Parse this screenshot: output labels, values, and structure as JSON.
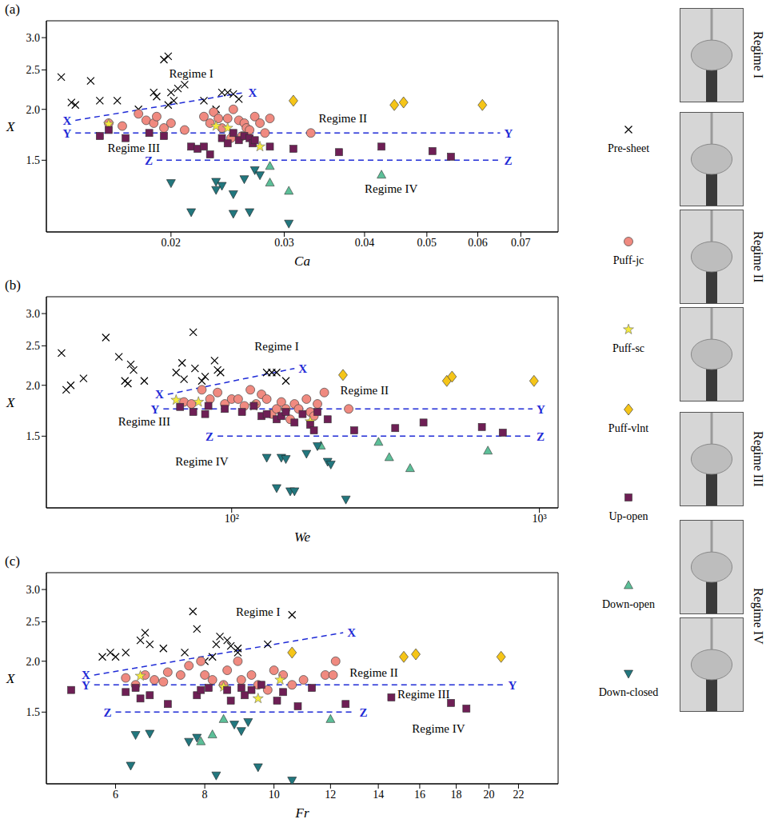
{
  "chart_data": [
    {
      "type": "scatter",
      "panel": "(a)",
      "xlabel": "Ca",
      "ylabel": "X",
      "log": true,
      "legend": "right",
      "xlim": [
        0.0128,
        0.08
      ],
      "xticks": [
        0.02,
        0.03,
        0.04,
        0.05,
        0.06,
        0.07
      ],
      "ylim": [
        1.0,
        3.3
      ],
      "yticks": [
        1.5,
        {
          "value": 2,
          "label": "2.0"
        },
        2.5,
        {
          "value": 3,
          "label": "3.0"
        }
      ],
      "series": [
        {
          "name": "Pre-sheet",
          "color": "#000000",
          "marker": "x",
          "x": [
            0.0135,
            0.014,
            0.0142,
            0.015,
            0.0155,
            0.0165,
            0.0178,
            0.0188,
            0.019,
            0.0195,
            0.0198,
            0.02,
            0.0205,
            0.0202,
            0.0198,
            0.021,
            0.0225,
            0.024,
            0.0245,
            0.025,
            0.0255,
            0.0235
          ],
          "y": [
            2.4,
            2.08,
            2.05,
            2.35,
            2.1,
            2.1,
            2.0,
            2.2,
            2.15,
            2.65,
            2.7,
            2.2,
            2.25,
            2.1,
            2.05,
            2.3,
            2.1,
            2.2,
            2.2,
            2.18,
            2.12,
            2.0
          ]
        },
        {
          "name": "Puff-jc",
          "color": "#f08a80",
          "marker": "circle",
          "x": [
            0.016,
            0.0168,
            0.0178,
            0.0183,
            0.0188,
            0.019,
            0.0195,
            0.02,
            0.021,
            0.0225,
            0.023,
            0.0233,
            0.0237,
            0.024,
            0.0245,
            0.025,
            0.0255,
            0.026,
            0.0262,
            0.0265,
            0.027,
            0.0275,
            0.028,
            0.0285,
            0.033,
            0.0248,
            0.0258
          ],
          "y": [
            1.85,
            1.82,
            1.95,
            1.88,
            1.85,
            1.92,
            1.8,
            1.85,
            1.78,
            1.92,
            1.85,
            1.97,
            1.9,
            1.8,
            1.9,
            2.0,
            1.88,
            1.85,
            1.8,
            1.78,
            1.92,
            1.85,
            1.75,
            1.9,
            1.75,
            1.7,
            1.72
          ]
        },
        {
          "name": "Puff-sc",
          "color": "#f4ea3c",
          "marker": "star",
          "x": [
            0.016,
            0.0235,
            0.0245,
            0.0275
          ],
          "y": [
            1.84,
            1.82,
            1.8,
            1.62
          ]
        },
        {
          "name": "Puff-vlnt",
          "color": "#f5c518",
          "marker": "diamond",
          "x": [
            0.031,
            0.0445,
            0.046,
            0.061
          ],
          "y": [
            2.1,
            2.05,
            2.08,
            2.05
          ]
        },
        {
          "name": "Up-open",
          "color": "#6e1f55",
          "marker": "square",
          "x": [
            0.0155,
            0.016,
            0.017,
            0.0185,
            0.0195,
            0.0215,
            0.022,
            0.0225,
            0.023,
            0.024,
            0.0245,
            0.025,
            0.0255,
            0.026,
            0.0265,
            0.0268,
            0.027,
            0.0285,
            0.031,
            0.0365,
            0.0425,
            0.051,
            0.0545
          ],
          "y": [
            1.72,
            1.78,
            1.7,
            1.75,
            1.72,
            1.62,
            1.6,
            1.62,
            1.55,
            1.7,
            1.65,
            1.75,
            1.68,
            1.72,
            1.7,
            1.65,
            1.68,
            1.62,
            1.6,
            1.57,
            1.62,
            1.58,
            1.53
          ]
        },
        {
          "name": "Down-open",
          "color": "#5cbf98",
          "marker": "triangle",
          "x": [
            0.0285,
            0.0285,
            0.0305,
            0.0425
          ],
          "y": [
            1.45,
            1.32,
            1.26,
            1.38
          ]
        },
        {
          "name": "Down-closed",
          "color": "#22777e",
          "marker": "triangle-down",
          "x": [
            0.02,
            0.0215,
            0.0235,
            0.024,
            0.025,
            0.025,
            0.026,
            0.0265,
            0.027,
            0.0275,
            0.0305,
            0.0235
          ],
          "y": [
            1.32,
            1.12,
            1.33,
            1.3,
            1.24,
            1.11,
            1.35,
            1.12,
            1.42,
            1.38,
            1.05,
            1.27
          ]
        }
      ],
      "boundaries": [
        {
          "label": "X",
          "color": "#1f2bd6",
          "line_style": "dashed",
          "x": [
            0.0142,
            0.026
          ],
          "y": [
            1.88,
            2.2
          ]
        },
        {
          "label": "Y",
          "color": "#1f2bd6",
          "line_style": "dashed",
          "x": [
            0.0142,
            0.065
          ],
          "y": [
            1.75,
            1.75
          ]
        },
        {
          "label": "Z",
          "color": "#1f2bd6",
          "line_style": "dashed",
          "x": [
            0.019,
            0.065
          ],
          "y": [
            1.5,
            1.5
          ]
        }
      ],
      "annotations": [
        {
          "text": "Regime I",
          "x": 0.0215,
          "y": 2.45
        },
        {
          "text": "Regime II",
          "x": 0.037,
          "y": 1.9
        },
        {
          "text": "Regime III",
          "x": 0.0175,
          "y": 1.61
        },
        {
          "text": "Regime IV",
          "x": 0.044,
          "y": 1.28
        }
      ]
    },
    {
      "type": "scatter",
      "panel": "(b)",
      "xlabel": "We",
      "ylabel": "X",
      "log": true,
      "legend": "right",
      "xlim": [
        25,
        1150
      ],
      "xticks": [
        {
          "value": 100,
          "label": "10²"
        },
        {
          "value": 1000,
          "label": "10³"
        }
      ],
      "ylim": [
        1.0,
        3.3
      ],
      "yticks": [
        1.5,
        {
          "value": 2,
          "label": "2.0"
        },
        2.5,
        {
          "value": 3,
          "label": "3.0"
        }
      ],
      "series": [
        {
          "name": "Pre-sheet",
          "color": "#000000",
          "marker": "x",
          "x": [
            28,
            29,
            30,
            33,
            39,
            43,
            45,
            46,
            47,
            48,
            52,
            66,
            69,
            70,
            75,
            76,
            80,
            82,
            88,
            90,
            92,
            130,
            135,
            140,
            150
          ],
          "y": [
            2.4,
            1.95,
            2.0,
            2.08,
            2.62,
            2.35,
            2.05,
            2.02,
            2.25,
            2.18,
            2.05,
            2.15,
            2.27,
            2.07,
            2.7,
            2.2,
            2.05,
            2.1,
            2.3,
            2.18,
            2.15,
            2.15,
            2.15,
            2.15,
            2.05
          ]
        },
        {
          "name": "Puff-jc",
          "color": "#f08a80",
          "marker": "circle",
          "x": [
            70,
            74,
            80,
            85,
            90,
            95,
            100,
            105,
            110,
            115,
            120,
            125,
            130,
            135,
            140,
            145,
            150,
            155,
            160,
            165,
            175,
            180,
            190,
            240,
            200,
            185
          ],
          "y": [
            1.82,
            1.8,
            1.95,
            1.85,
            1.92,
            1.8,
            1.85,
            1.85,
            1.78,
            1.95,
            1.8,
            1.9,
            1.85,
            1.7,
            1.75,
            1.82,
            1.75,
            1.65,
            1.8,
            1.75,
            1.85,
            1.72,
            1.8,
            1.75,
            1.92,
            1.68
          ]
        },
        {
          "name": "Puff-sc",
          "color": "#f4ea3c",
          "marker": "star",
          "x": [
            66,
            78,
            118,
            180
          ],
          "y": [
            1.84,
            1.82,
            1.78,
            1.63
          ]
        },
        {
          "name": "Puff-vlnt",
          "color": "#f5c518",
          "marker": "diamond",
          "x": [
            230,
            500,
            520,
            960
          ],
          "y": [
            2.12,
            2.05,
            2.1,
            2.05
          ]
        },
        {
          "name": "Up-open",
          "color": "#6e1f55",
          "marker": "square",
          "x": [
            68,
            75,
            82,
            84,
            95,
            108,
            118,
            125,
            130,
            140,
            145,
            150,
            160,
            170,
            180,
            185,
            190,
            205,
            250,
            340,
            420,
            650,
            760
          ],
          "y": [
            1.77,
            1.72,
            1.7,
            1.78,
            1.75,
            1.72,
            1.78,
            1.68,
            1.7,
            1.65,
            1.68,
            1.72,
            1.62,
            1.7,
            1.6,
            1.55,
            1.72,
            1.65,
            1.55,
            1.57,
            1.62,
            1.58,
            1.53
          ]
        },
        {
          "name": "Down-open",
          "color": "#5cbf98",
          "marker": "triangle",
          "x": [
            195,
            300,
            325,
            380,
            680
          ],
          "y": [
            1.42,
            1.45,
            1.33,
            1.25,
            1.38
          ]
        },
        {
          "name": "Down-closed",
          "color": "#22777e",
          "marker": "triangle-down",
          "x": [
            130,
            145,
            150,
            175,
            190,
            205,
            210,
            140,
            155,
            160,
            235
          ],
          "y": [
            1.33,
            1.33,
            1.32,
            1.36,
            1.42,
            1.3,
            1.28,
            1.12,
            1.1,
            1.1,
            1.05
          ]
        }
      ],
      "boundaries": [
        {
          "label": "X",
          "color": "#1f2bd6",
          "line_style": "dashed",
          "x": [
            62,
            160
          ],
          "y": [
            1.9,
            2.2
          ]
        },
        {
          "label": "Y",
          "color": "#1f2bd6",
          "line_style": "dashed",
          "x": [
            60,
            950
          ],
          "y": [
            1.75,
            1.75
          ]
        },
        {
          "label": "Z",
          "color": "#1f2bd6",
          "line_style": "dashed",
          "x": [
            90,
            950
          ],
          "y": [
            1.5,
            1.5
          ]
        }
      ],
      "annotations": [
        {
          "text": "Regime I",
          "x": 140,
          "y": 2.5
        },
        {
          "text": "Regime II",
          "x": 270,
          "y": 1.95
        },
        {
          "text": "Regime III",
          "x": 52,
          "y": 1.63
        },
        {
          "text": "Regime IV",
          "x": 80,
          "y": 1.3
        }
      ]
    },
    {
      "type": "scatter",
      "panel": "(c)",
      "xlabel": "Fr",
      "ylabel": "X",
      "log": true,
      "legend": "right",
      "xlim": [
        4.8,
        25
      ],
      "xticks": [
        6,
        8,
        10,
        12,
        14,
        16,
        18,
        20,
        22
      ],
      "ylim": [
        1.0,
        3.3
      ],
      "yticks": [
        1.5,
        {
          "value": 2,
          "label": "2.0"
        },
        2.5,
        {
          "value": 3,
          "label": "3.0"
        }
      ],
      "series": [
        {
          "name": "Pre-sheet",
          "color": "#000000",
          "marker": "x",
          "x": [
            5.75,
            5.9,
            6.0,
            6.2,
            6.5,
            6.6,
            6.7,
            7.0,
            7.5,
            7.7,
            7.8,
            8.0,
            8.2,
            8.3,
            8.4,
            8.6,
            8.7,
            8.9,
            9.8,
            10.6,
            8.9
          ],
          "y": [
            2.05,
            2.1,
            2.05,
            2.1,
            2.25,
            2.35,
            2.2,
            2.15,
            2.1,
            2.65,
            2.4,
            2.0,
            2.05,
            2.2,
            2.3,
            2.25,
            2.18,
            2.15,
            2.2,
            2.6,
            2.1
          ]
        },
        {
          "name": "Puff-jc",
          "color": "#f08a80",
          "marker": "circle",
          "x": [
            6.2,
            6.4,
            6.6,
            6.8,
            7.0,
            7.1,
            7.4,
            7.6,
            7.9,
            8.0,
            8.2,
            8.5,
            8.6,
            8.9,
            9.0,
            9.3,
            9.5,
            9.8,
            10.0,
            10.3,
            10.6,
            11.0,
            11.8,
            12.2,
            12.1
          ],
          "y": [
            1.82,
            1.75,
            1.85,
            1.8,
            1.78,
            1.88,
            1.85,
            1.95,
            2.0,
            1.85,
            1.8,
            1.75,
            1.9,
            2.0,
            1.8,
            1.85,
            1.75,
            1.7,
            1.9,
            1.85,
            1.75,
            1.8,
            1.85,
            2.0,
            1.85
          ]
        },
        {
          "name": "Puff-sc",
          "color": "#f4ea3c",
          "marker": "star",
          "x": [
            6.5,
            8.5,
            9.5,
            10.2
          ],
          "y": [
            1.84,
            1.73,
            1.62,
            1.8
          ]
        },
        {
          "name": "Puff-vlnt",
          "color": "#f5c518",
          "marker": "diamond",
          "x": [
            10.6,
            15.2,
            15.8,
            20.8
          ],
          "y": [
            2.1,
            2.05,
            2.08,
            2.05
          ]
        },
        {
          "name": "Up-open",
          "color": "#6e1f55",
          "marker": "square",
          "x": [
            5.2,
            6.2,
            6.4,
            6.5,
            6.7,
            7.1,
            7.8,
            7.9,
            8.1,
            8.6,
            8.7,
            9.1,
            9.3,
            9.6,
            10.1,
            10.3,
            10.8,
            11.3,
            12.6,
            14.6,
            17.7,
            18.6,
            9.0
          ],
          "y": [
            1.7,
            1.68,
            1.72,
            1.62,
            1.65,
            1.57,
            1.65,
            1.7,
            1.72,
            1.7,
            1.6,
            1.65,
            1.7,
            1.75,
            1.6,
            1.68,
            1.55,
            1.72,
            1.57,
            1.63,
            1.58,
            1.53,
            1.72
          ]
        },
        {
          "name": "Down-open",
          "color": "#5cbf98",
          "marker": "triangle",
          "x": [
            8.2,
            8.5,
            7.9,
            12.0
          ],
          "y": [
            1.32,
            1.44,
            1.27,
            1.44
          ]
        },
        {
          "name": "Down-closed",
          "color": "#22777e",
          "marker": "triangle-down",
          "x": [
            6.3,
            6.4,
            6.7,
            7.6,
            7.8,
            8.3,
            8.8,
            9.0,
            9.2,
            9.5,
            10.6
          ],
          "y": [
            1.11,
            1.32,
            1.33,
            1.27,
            1.3,
            1.05,
            1.4,
            1.35,
            1.42,
            1.1,
            1.02
          ]
        }
      ],
      "boundaries": [
        {
          "label": "X",
          "color": "#1f2bd6",
          "line_style": "dashed",
          "x": [
            5.6,
            12.5
          ],
          "y": [
            1.85,
            2.35
          ]
        },
        {
          "label": "Y",
          "color": "#1f2bd6",
          "line_style": "dashed",
          "x": [
            5.6,
            21
          ],
          "y": [
            1.75,
            1.75
          ]
        },
        {
          "label": "Z",
          "color": "#1f2bd6",
          "line_style": "dashed",
          "x": [
            6,
            13
          ],
          "y": [
            1.5,
            1.5
          ]
        }
      ],
      "annotations": [
        {
          "text": "Regime I",
          "x": 9.5,
          "y": 2.65
        },
        {
          "text": "Regime II",
          "x": 13.8,
          "y": 1.88
        },
        {
          "text": "Regime III",
          "x": 16.2,
          "y": 1.665
        },
        {
          "text": "Regime IV",
          "x": 17,
          "y": 1.37
        }
      ]
    }
  ],
  "side_labels": [
    "Regime I",
    "Regime II",
    "Regime III",
    "Regime IV"
  ]
}
